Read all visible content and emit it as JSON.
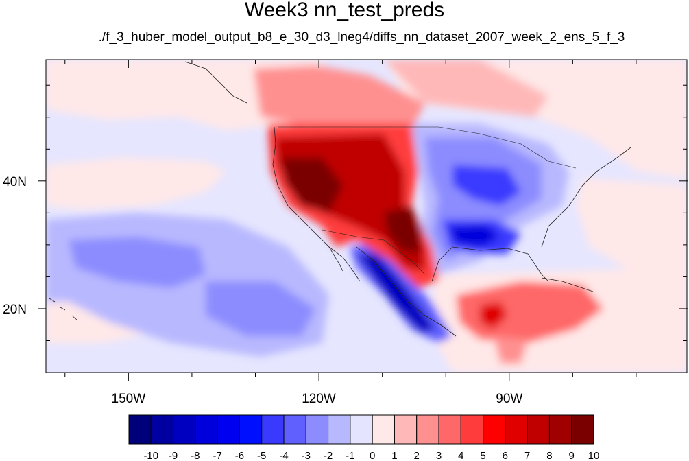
{
  "title": "Week3 nn_test_preds",
  "subtitle": "./f_3_huber_model_output_b8_e_30_d3_lneg4/diffs_nn_dataset_2007_week_2_ens_5_f_3",
  "map": {
    "lon_range": [
      -163,
      -62
    ],
    "lat_range": [
      10,
      59
    ],
    "x_ticks": [
      {
        "lon": -150,
        "label": "150W"
      },
      {
        "lon": -120,
        "label": "120W"
      },
      {
        "lon": -90,
        "label": "90W"
      }
    ],
    "y_ticks": [
      {
        "lat": 40,
        "label": "40N"
      },
      {
        "lat": 20,
        "label": "20N"
      }
    ]
  },
  "colorbar": {
    "labels": [
      "-10",
      "-9",
      "-8",
      "-7",
      "-6",
      "-5",
      "-4",
      "-3",
      "-2",
      "-1",
      "0",
      "1",
      "2",
      "3",
      "4",
      "5",
      "6",
      "7",
      "8",
      "9",
      "10"
    ],
    "colors": [
      "#00007a",
      "#0000a0",
      "#0000c0",
      "#0000dc",
      "#0000f0",
      "#0010ff",
      "#3a3aff",
      "#6060ff",
      "#8c8cff",
      "#b8b8ff",
      "#e4e4ff",
      "#ffe8e8",
      "#ffb8b8",
      "#ff9090",
      "#ff6868",
      "#ff3c3c",
      "#ff0000",
      "#e00000",
      "#c00000",
      "#a00000",
      "#7a0000"
    ]
  }
}
